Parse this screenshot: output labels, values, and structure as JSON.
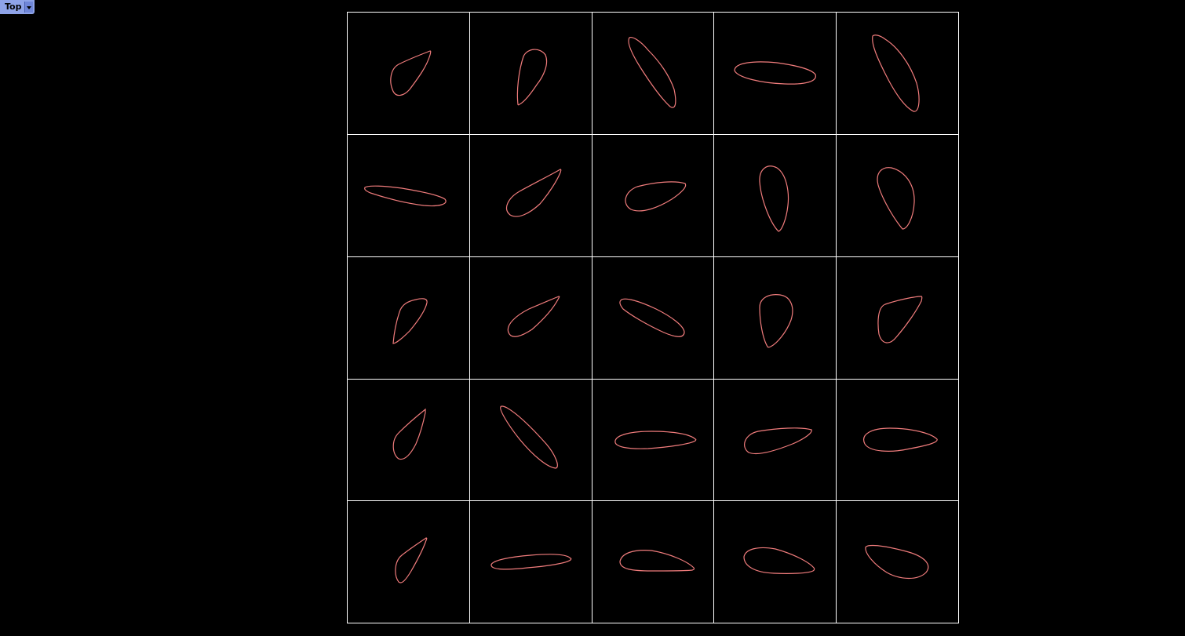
{
  "viewport": {
    "label": "Top",
    "dropdown_icon": "chevron-down-icon",
    "background_color": "#000000",
    "grid_line_color": "#ffffff",
    "curve_color": "#f07c7c"
  },
  "grid": {
    "rows": 5,
    "cols": 5
  }
}
